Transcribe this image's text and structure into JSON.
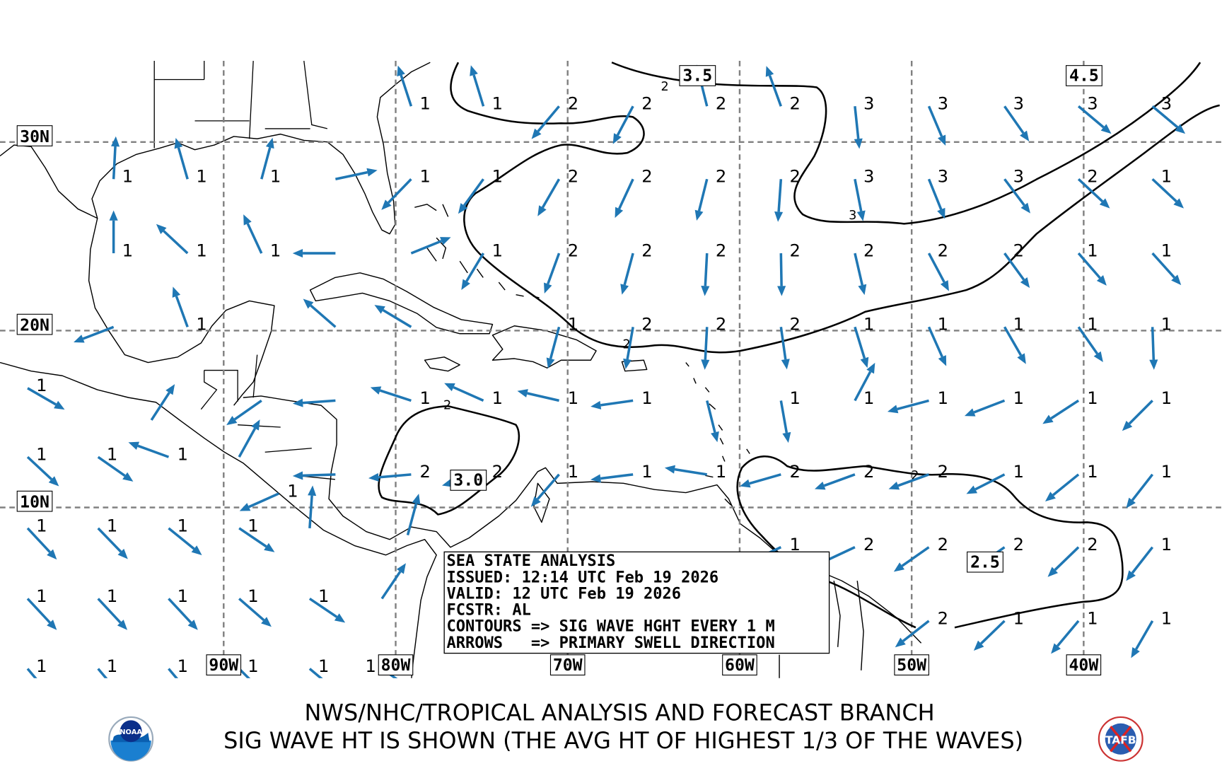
{
  "colors": {
    "arrow": "#1f77b4",
    "contour": "#000000",
    "grid": "#808080",
    "land_outline": "#000000"
  },
  "map": {
    "lat_labels": [
      {
        "text": "30N",
        "lat": 30
      },
      {
        "text": "20N",
        "lat": 20
      },
      {
        "text": "10N",
        "lat": 10
      }
    ],
    "lon_labels": [
      {
        "text": "90W",
        "lon": -90
      },
      {
        "text": "80W",
        "lon": -80
      },
      {
        "text": "70W",
        "lon": -70
      },
      {
        "text": "60W",
        "lon": -60
      },
      {
        "text": "50W",
        "lon": -50
      },
      {
        "text": "40W",
        "lon": -40
      }
    ]
  },
  "contour_labels": {
    "c35": "3.5",
    "c45": "4.5",
    "c30": "3.0",
    "c25": "2.5",
    "s1": "2",
    "s2": "2",
    "s3": "3",
    "s4": "2",
    "s5": "2"
  },
  "info_box": {
    "line1": "SEA STATE ANALYSIS",
    "line2": "ISSUED: 12:14 UTC Feb 19 2026",
    "line3": "VALID: 12 UTC Feb 19 2026",
    "line4": "FCSTR: AL",
    "line5": "CONTOURS => SIG WAVE HGHT EVERY 1 M",
    "line6": "ARROWS   => PRIMARY SWELL DIRECTION"
  },
  "footer": {
    "line1": "NWS/NHC/TROPICAL ANALYSIS AND FORECAST BRANCH",
    "line2": "SIG WAVE HT IS SHOWN (THE AVG HT OF HIGHEST 1/3 OF THE WAVES)"
  },
  "logos": {
    "left": "NOAA",
    "right": "TAFB"
  },
  "swell_points": [
    {
      "lon": -79.1,
      "lat": 31.8,
      "h": "1",
      "dir": 342
    },
    {
      "lon": -74.9,
      "lat": 31.8,
      "h": "1",
      "dir": 343
    },
    {
      "lon": -70.5,
      "lat": 31.8,
      "h": "2",
      "dir": 220
    },
    {
      "lon": -66.2,
      "lat": 31.8,
      "h": "2",
      "dir": 208
    },
    {
      "lon": -61.9,
      "lat": 31.8,
      "h": "2",
      "dir": 346
    },
    {
      "lon": -57.6,
      "lat": 31.8,
      "h": "2",
      "dir": 340
    },
    {
      "lon": -53.3,
      "lat": 31.8,
      "h": "3",
      "dir": 174
    },
    {
      "lon": -49.0,
      "lat": 31.8,
      "h": "3",
      "dir": 157
    },
    {
      "lon": -44.6,
      "lat": 31.8,
      "h": "3",
      "dir": 145
    },
    {
      "lon": -40.3,
      "lat": 31.8,
      "h": "3",
      "dir": 130
    },
    {
      "lon": -36.0,
      "lat": 31.8,
      "h": "3",
      "dir": 130
    },
    {
      "lon": -96.4,
      "lat": 28.1,
      "h": "1",
      "dir": 3
    },
    {
      "lon": -92.1,
      "lat": 28.1,
      "h": "1",
      "dir": 344
    },
    {
      "lon": -87.8,
      "lat": 28.1,
      "h": "1",
      "dir": 15
    },
    {
      "lon": -83.5,
      "lat": 28.1,
      "h": "",
      "dir": 78
    },
    {
      "lon": -79.1,
      "lat": 28.1,
      "h": "1",
      "dir": 224
    },
    {
      "lon": -74.9,
      "lat": 28.1,
      "h": "1",
      "dir": 216
    },
    {
      "lon": -70.5,
      "lat": 28.1,
      "h": "2",
      "dir": 210
    },
    {
      "lon": -66.2,
      "lat": 28.1,
      "h": "2",
      "dir": 205
    },
    {
      "lon": -61.9,
      "lat": 28.1,
      "h": "2",
      "dir": 194
    },
    {
      "lon": -57.6,
      "lat": 28.1,
      "h": "2",
      "dir": 184
    },
    {
      "lon": -53.3,
      "lat": 28.1,
      "h": "3",
      "dir": 169
    },
    {
      "lon": -49.0,
      "lat": 28.1,
      "h": "3",
      "dir": 158
    },
    {
      "lon": -44.6,
      "lat": 28.1,
      "h": "3",
      "dir": 143
    },
    {
      "lon": -40.3,
      "lat": 28.1,
      "h": "2",
      "dir": 133
    },
    {
      "lon": -36.0,
      "lat": 28.1,
      "h": "1",
      "dir": 133
    },
    {
      "lon": -96.4,
      "lat": 24.2,
      "h": "1",
      "dir": 0
    },
    {
      "lon": -92.1,
      "lat": 24.2,
      "h": "1",
      "dir": 313
    },
    {
      "lon": -87.8,
      "lat": 24.2,
      "h": "1",
      "dir": 335
    },
    {
      "lon": -83.5,
      "lat": 24.2,
      "h": "",
      "dir": 270
    },
    {
      "lon": -79.1,
      "lat": 24.2,
      "h": "",
      "dir": 68
    },
    {
      "lon": -74.9,
      "lat": 24.2,
      "h": "1",
      "dir": 211
    },
    {
      "lon": -70.5,
      "lat": 24.2,
      "h": "2",
      "dir": 200
    },
    {
      "lon": -66.2,
      "lat": 24.2,
      "h": "2",
      "dir": 195
    },
    {
      "lon": -61.9,
      "lat": 24.2,
      "h": "2",
      "dir": 183
    },
    {
      "lon": -57.6,
      "lat": 24.2,
      "h": "2",
      "dir": 179
    },
    {
      "lon": -53.3,
      "lat": 24.2,
      "h": "2",
      "dir": 167
    },
    {
      "lon": -49.0,
      "lat": 24.2,
      "h": "2",
      "dir": 152
    },
    {
      "lon": -44.6,
      "lat": 24.2,
      "h": "2",
      "dir": 144
    },
    {
      "lon": -40.3,
      "lat": 24.2,
      "h": "1",
      "dir": 139
    },
    {
      "lon": -36.0,
      "lat": 24.2,
      "h": "1",
      "dir": 138
    },
    {
      "lon": -96.4,
      "lat": 20.2,
      "h": "",
      "dir": 249
    },
    {
      "lon": -92.1,
      "lat": 20.2,
      "h": "1",
      "dir": 340
    },
    {
      "lon": -83.5,
      "lat": 20.2,
      "h": "",
      "dir": 311
    },
    {
      "lon": -79.1,
      "lat": 20.2,
      "h": "",
      "dir": 301
    },
    {
      "lon": -70.5,
      "lat": 20.2,
      "h": "1",
      "dir": 195
    },
    {
      "lon": -66.2,
      "lat": 20.2,
      "h": "2",
      "dir": 190
    },
    {
      "lon": -61.9,
      "lat": 20.2,
      "h": "2",
      "dir": 183
    },
    {
      "lon": -57.6,
      "lat": 20.2,
      "h": "2",
      "dir": 172
    },
    {
      "lon": -53.3,
      "lat": 20.2,
      "h": "1",
      "dir": 163
    },
    {
      "lon": -49.0,
      "lat": 20.2,
      "h": "1",
      "dir": 156
    },
    {
      "lon": -44.6,
      "lat": 20.2,
      "h": "1",
      "dir": 150
    },
    {
      "lon": -40.3,
      "lat": 20.2,
      "h": "1",
      "dir": 145
    },
    {
      "lon": -36.0,
      "lat": 20.2,
      "h": "1",
      "dir": 178
    },
    {
      "lon": -87.8,
      "lat": 16.1,
      "h": "",
      "dir": 235
    },
    {
      "lon": -83.5,
      "lat": 16.1,
      "h": "",
      "dir": 266
    },
    {
      "lon": -79.1,
      "lat": 16.1,
      "h": "1",
      "dir": 288
    },
    {
      "lon": -74.9,
      "lat": 16.1,
      "h": "1",
      "dir": 294
    },
    {
      "lon": -70.5,
      "lat": 16.1,
      "h": "1",
      "dir": 283
    },
    {
      "lon": -66.2,
      "lat": 16.1,
      "h": "1",
      "dir": 262
    },
    {
      "lon": -61.9,
      "lat": 16.1,
      "h": "",
      "dir": 166
    },
    {
      "lon": -57.6,
      "lat": 16.1,
      "h": "1",
      "dir": 170
    },
    {
      "lon": -53.3,
      "lat": 16.1,
      "h": "1",
      "dir": 28
    },
    {
      "lon": -49.0,
      "lat": 16.1,
      "h": "1",
      "dir": 255
    },
    {
      "lon": -44.6,
      "lat": 16.1,
      "h": "1",
      "dir": 249
    },
    {
      "lon": -40.3,
      "lat": 16.1,
      "h": "1",
      "dir": 237
    },
    {
      "lon": -36.0,
      "lat": 16.1,
      "h": "1",
      "dir": 225
    },
    {
      "lon": -83.5,
      "lat": 11.9,
      "h": "",
      "dir": 268
    },
    {
      "lon": -79.1,
      "lat": 11.9,
      "h": "2",
      "dir": 265
    },
    {
      "lon": -74.9,
      "lat": 11.9,
      "h": "2",
      "dir": 255
    },
    {
      "lon": -70.5,
      "lat": 11.9,
      "h": "1",
      "dir": 221
    },
    {
      "lon": -66.2,
      "lat": 11.9,
      "h": "1",
      "dir": 263
    },
    {
      "lon": -61.9,
      "lat": 11.9,
      "h": "1",
      "dir": 279
    },
    {
      "lon": -57.6,
      "lat": 11.9,
      "h": "2",
      "dir": 254
    },
    {
      "lon": -53.3,
      "lat": 11.9,
      "h": "2",
      "dir": 250
    },
    {
      "lon": -49.0,
      "lat": 11.9,
      "h": "2",
      "dir": 250
    },
    {
      "lon": -44.6,
      "lat": 11.9,
      "h": "1",
      "dir": 243
    },
    {
      "lon": -40.3,
      "lat": 11.9,
      "h": "1",
      "dir": 231
    },
    {
      "lon": -36.0,
      "lat": 11.9,
      "h": "1",
      "dir": 218
    },
    {
      "lon": -57.6,
      "lat": 7.7,
      "h": "1",
      "dir": 245
    },
    {
      "lon": -53.3,
      "lat": 7.7,
      "h": "2",
      "dir": 245
    },
    {
      "lon": -49.0,
      "lat": 7.7,
      "h": "2",
      "dir": 235
    },
    {
      "lon": -44.6,
      "lat": 7.7,
      "h": "2",
      "dir": 235
    },
    {
      "lon": -40.3,
      "lat": 7.7,
      "h": "2",
      "dir": 226
    },
    {
      "lon": -36.0,
      "lat": 7.7,
      "h": "1",
      "dir": 218
    },
    {
      "lon": -49.0,
      "lat": 3.4,
      "h": "2",
      "dir": 232
    },
    {
      "lon": -44.6,
      "lat": 3.4,
      "h": "1",
      "dir": 226
    },
    {
      "lon": -40.3,
      "lat": 3.4,
      "h": "1",
      "dir": 220
    },
    {
      "lon": -36.0,
      "lat": 3.4,
      "h": "1",
      "dir": 210
    },
    {
      "lon": -101.4,
      "lat": 16.8,
      "h": "1",
      "dir": 120
    },
    {
      "lon": -101.4,
      "lat": 12.9,
      "h": "1",
      "dir": 133
    },
    {
      "lon": -97.3,
      "lat": 12.9,
      "h": "1",
      "dir": 125
    },
    {
      "lon": -93.2,
      "lat": 12.9,
      "h": "1",
      "dir": 290
    },
    {
      "lon": -89.1,
      "lat": 12.9,
      "h": "",
      "dir": 29
    },
    {
      "lon": -101.4,
      "lat": 8.8,
      "h": "1",
      "dir": 137
    },
    {
      "lon": -97.3,
      "lat": 8.8,
      "h": "1",
      "dir": 136
    },
    {
      "lon": -93.2,
      "lat": 8.8,
      "h": "1",
      "dir": 129
    },
    {
      "lon": -89.1,
      "lat": 8.8,
      "h": "1",
      "dir": 124
    },
    {
      "lon": -85.0,
      "lat": 8.8,
      "h": "",
      "dir": 4
    },
    {
      "lon": -101.4,
      "lat": 4.7,
      "h": "1",
      "dir": 137
    },
    {
      "lon": -97.3,
      "lat": 4.7,
      "h": "1",
      "dir": 137
    },
    {
      "lon": -93.2,
      "lat": 4.7,
      "h": "1",
      "dir": 137
    },
    {
      "lon": -89.1,
      "lat": 4.7,
      "h": "1",
      "dir": 131
    },
    {
      "lon": -85.0,
      "lat": 4.7,
      "h": "1",
      "dir": 124
    },
    {
      "lon": -80.8,
      "lat": 4.7,
      "h": "",
      "dir": 34
    },
    {
      "lon": -101.4,
      "lat": 0.6,
      "h": "1",
      "dir": 140
    },
    {
      "lon": -97.3,
      "lat": 0.6,
      "h": "1",
      "dir": 140
    },
    {
      "lon": -93.2,
      "lat": 0.6,
      "h": "1",
      "dir": 140
    },
    {
      "lon": -89.1,
      "lat": 0.6,
      "h": "1",
      "dir": 135
    },
    {
      "lon": -85.0,
      "lat": 0.6,
      "h": "1",
      "dir": 130
    },
    {
      "lon": -80.8,
      "lat": 0.6,
      "h": "1",
      "dir": 125
    },
    {
      "lon": -94.2,
      "lat": 15.0,
      "h": "",
      "dir": 33
    },
    {
      "lon": -86.8,
      "lat": 10.8,
      "h": "1",
      "dir": 246
    },
    {
      "lon": -79.3,
      "lat": 8.4,
      "h": "",
      "dir": 15
    }
  ]
}
